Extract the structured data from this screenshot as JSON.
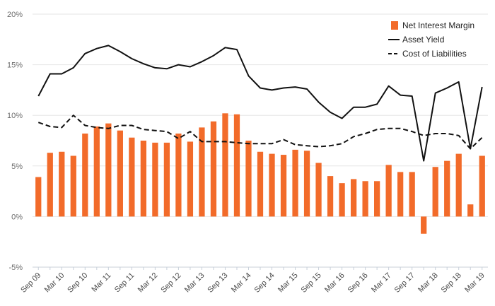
{
  "chart_data": {
    "type": "bar+line",
    "x": [
      "Sep 09",
      "Dec 09",
      "Mar 10",
      "Jun 10",
      "Sep 10",
      "Dec 10",
      "Mar 11",
      "Jun 11",
      "Sep 11",
      "Dec 11",
      "Mar 12",
      "Jun 12",
      "Sep 12",
      "Dec 12",
      "Mar 13",
      "Jun 13",
      "Sep 13",
      "Dec 13",
      "Mar 14",
      "Jun 14",
      "Sep 14",
      "Dec 14",
      "Mar 15",
      "Jun 15",
      "Sep 15",
      "Dec 15",
      "Mar 16",
      "Jun 16",
      "Sep 16",
      "Dec 16",
      "Mar 17",
      "Jun 17",
      "Sep 17",
      "Dec 17",
      "Mar 18",
      "Jun 18",
      "Sep 18",
      "Dec 18",
      "Mar 19"
    ],
    "x_tick_labels": [
      "Sep 09",
      "Mar 10",
      "Sep 10",
      "Mar 11",
      "Sep 11",
      "Mar 12",
      "Sep 12",
      "Mar 13",
      "Sep 13",
      "Mar 14",
      "Sep 14",
      "Mar 15",
      "Sep 15",
      "Mar 16",
      "Sep 16",
      "Mar 17",
      "Sep 17",
      "Mar 18",
      "Sep 18",
      "Mar 19"
    ],
    "y_tick_labels": [
      "20%",
      "15%",
      "10%",
      "5%",
      "0%",
      "-5%"
    ],
    "y_tick_values": [
      20,
      15,
      10,
      5,
      0,
      -5
    ],
    "ylim": [
      -5,
      20
    ],
    "series": [
      {
        "name": "Net Interest Margin",
        "kind": "bar",
        "color": "#F26B2A",
        "values": [
          3.9,
          6.3,
          6.4,
          6.0,
          8.2,
          8.9,
          9.2,
          8.5,
          7.8,
          7.5,
          7.3,
          7.3,
          8.2,
          7.4,
          8.8,
          9.4,
          10.2,
          10.1,
          7.5,
          6.4,
          6.2,
          6.1,
          6.6,
          6.5,
          5.3,
          4.0,
          3.3,
          3.7,
          3.5,
          3.5,
          5.1,
          4.4,
          4.4,
          -1.7,
          4.9,
          5.5,
          6.2,
          1.2,
          6.0
        ]
      },
      {
        "name": "Asset Yield",
        "kind": "line",
        "color": "#111111",
        "dash": "solid",
        "values": [
          11.9,
          14.1,
          14.1,
          14.7,
          16.1,
          16.6,
          16.9,
          16.3,
          15.6,
          15.1,
          14.7,
          14.6,
          15.0,
          14.8,
          15.3,
          15.9,
          16.7,
          16.5,
          13.9,
          12.7,
          12.5,
          12.7,
          12.8,
          12.6,
          11.3,
          10.3,
          9.7,
          10.8,
          10.8,
          11.1,
          12.9,
          12.0,
          11.9,
          5.5,
          12.2,
          12.7,
          13.3,
          6.7,
          12.8
        ]
      },
      {
        "name": "Cost of Liabilities",
        "kind": "line",
        "color": "#111111",
        "dash": "dashed",
        "values": [
          9.3,
          8.9,
          8.8,
          10.0,
          9.0,
          8.8,
          8.7,
          9.0,
          9.0,
          8.6,
          8.5,
          8.4,
          7.7,
          8.4,
          7.4,
          7.4,
          7.4,
          7.3,
          7.2,
          7.2,
          7.2,
          7.6,
          7.1,
          7.0,
          6.9,
          7.0,
          7.2,
          7.9,
          8.2,
          8.6,
          8.7,
          8.7,
          8.4,
          8.0,
          8.2,
          8.2,
          8.0,
          6.7,
          7.8
        ]
      }
    ],
    "grid": "horizontal",
    "legend": "top-right"
  }
}
